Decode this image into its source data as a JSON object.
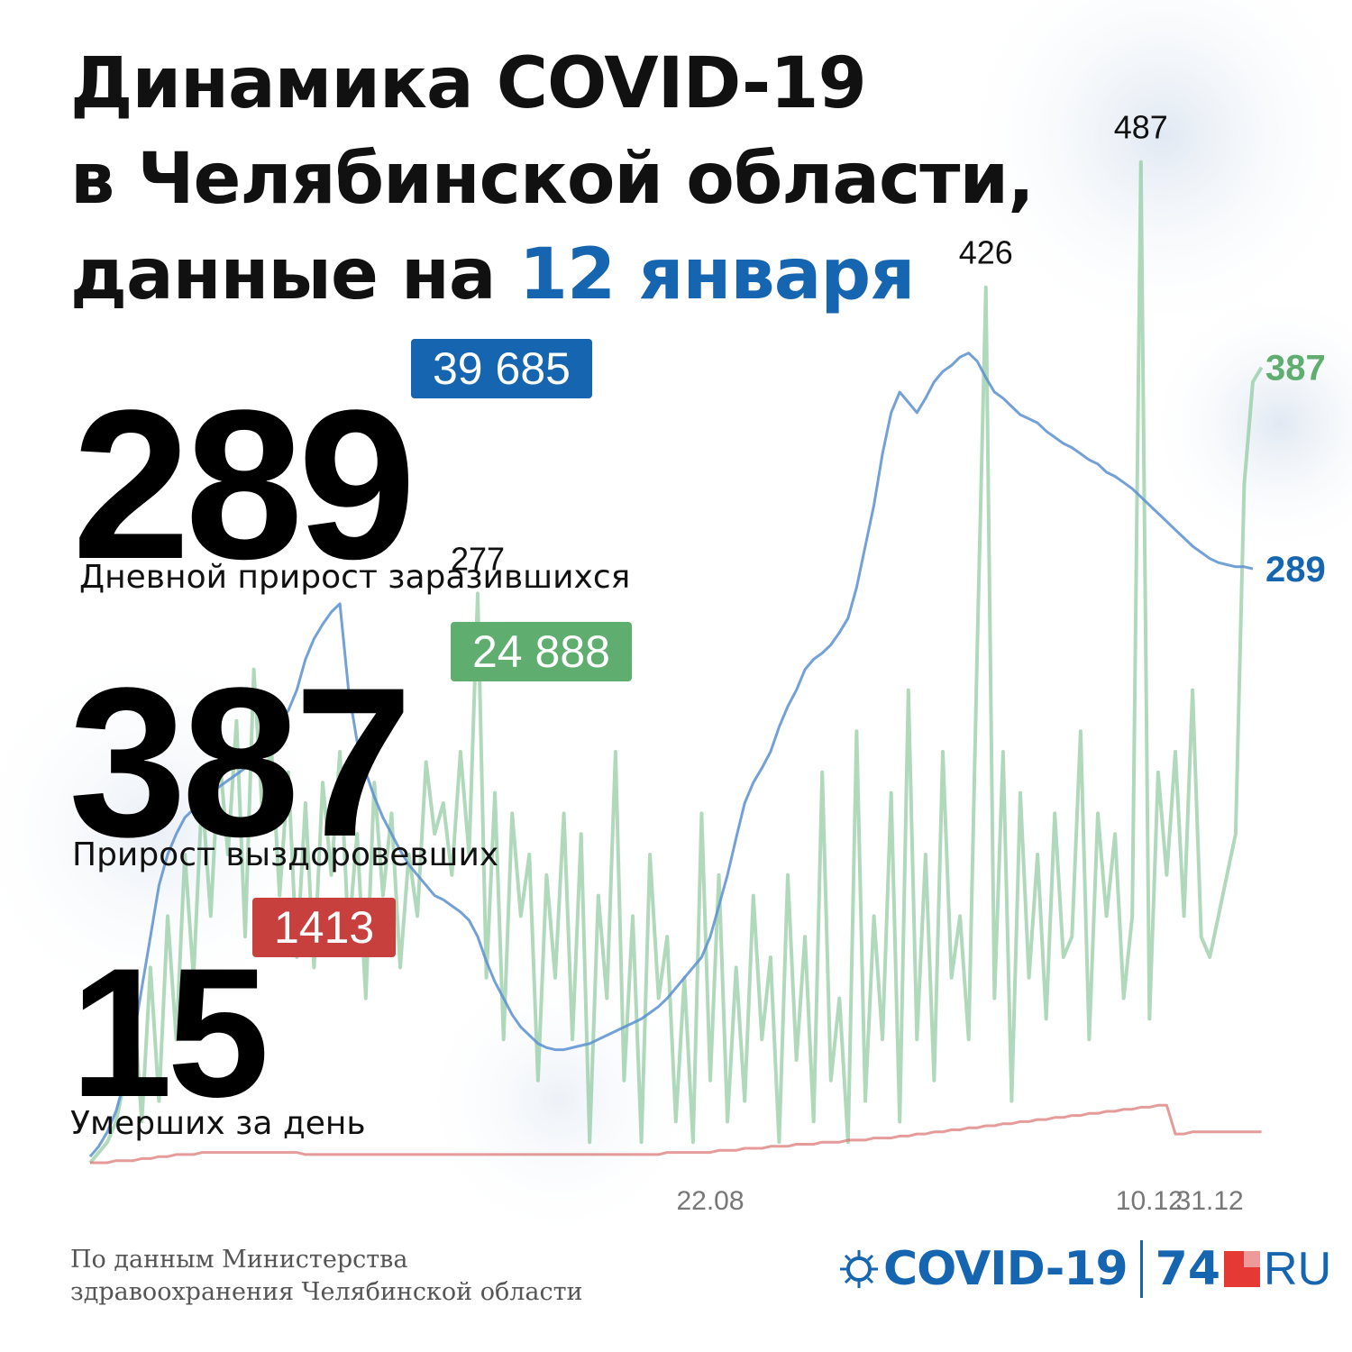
{
  "title": {
    "line1": "Динамика COVID-19",
    "line2": "в Челябинской области,",
    "line3_prefix": "данные на ",
    "line3_date": "12 января"
  },
  "stats": {
    "infected": {
      "value": "289",
      "label": "Дневной прирост заразившихся",
      "total": "39 685"
    },
    "recovered": {
      "value": "387",
      "label": "Прирост выздоровевших",
      "total": "24 888"
    },
    "deaths": {
      "value": "15",
      "label": "Умерших за день",
      "total": "1413"
    }
  },
  "footer": {
    "source_line1": "По данным Министерства",
    "source_line2": "здравоохранения Челябинской области"
  },
  "logo": {
    "covid": "COVID-19",
    "num": "74",
    "ru": "RU"
  },
  "colors": {
    "accent": "#1565b0",
    "infected": "#5b8fd0",
    "recovered": "#86c496",
    "deaths": "#d9706e",
    "badge_infected": "#1565b0",
    "badge_recovered": "#5fae6f",
    "badge_deaths": "#c8403e"
  },
  "chart_data": {
    "type": "line",
    "x_tick_labels": [
      "22.08",
      "10.12",
      "31.12"
    ],
    "ylim": [
      0,
      500
    ],
    "series": [
      {
        "key": "infected",
        "values": [
          3,
          8,
          15,
          25,
          40,
          60,
          85,
          110,
          135,
          150,
          160,
          168,
          172,
          176,
          180,
          183,
          186,
          189,
          192,
          195,
          200,
          210,
          215,
          220,
          230,
          245,
          255,
          262,
          268,
          272,
          230,
          205,
          190,
          178,
          168,
          160,
          152,
          145,
          140,
          135,
          130,
          128,
          125,
          122,
          118,
          110,
          98,
          88,
          80,
          72,
          66,
          62,
          58,
          56,
          55,
          55,
          56,
          57,
          58,
          60,
          62,
          64,
          66,
          68,
          70,
          73,
          76,
          80,
          85,
          90,
          95,
          100,
          110,
          125,
          140,
          158,
          175,
          185,
          192,
          200,
          212,
          222,
          230,
          240,
          245,
          248,
          252,
          258,
          265,
          280,
          300,
          320,
          345,
          365,
          375,
          370,
          365,
          372,
          380,
          385,
          388,
          392,
          394,
          390,
          382,
          375,
          372,
          368,
          364,
          362,
          360,
          356,
          353,
          350,
          348,
          345,
          342,
          340,
          336,
          334,
          331,
          328,
          324,
          320,
          316,
          312,
          308,
          304,
          300,
          297,
          294,
          292,
          291,
          290,
          290,
          289
        ],
        "end_label": "289"
      },
      {
        "key": "recovered",
        "values": [
          0,
          5,
          10,
          20,
          40,
          80,
          20,
          95,
          30,
          120,
          60,
          150,
          90,
          180,
          120,
          200,
          150,
          215,
          110,
          240,
          170,
          205,
          130,
          190,
          100,
          175,
          95,
          185,
          140,
          200,
          110,
          160,
          80,
          185,
          130,
          170,
          95,
          150,
          120,
          195,
          160,
          175,
          140,
          200,
          150,
          277,
          90,
          180,
          60,
          170,
          120,
          150,
          40,
          140,
          90,
          170,
          60,
          160,
          10,
          130,
          80,
          200,
          40,
          120,
          10,
          150,
          80,
          110,
          20,
          90,
          10,
          170,
          40,
          140,
          20,
          95,
          30,
          130,
          60,
          100,
          10,
          140,
          50,
          110,
          20,
          190,
          40,
          80,
          10,
          210,
          30,
          120,
          60,
          180,
          20,
          230,
          60,
          150,
          40,
          200,
          90,
          120,
          60,
          250,
          426,
          80,
          200,
          30,
          180,
          90,
          150,
          70,
          170,
          100,
          110,
          210,
          60,
          170,
          120,
          160,
          80,
          120,
          487,
          70,
          190,
          140,
          200,
          120,
          230,
          110,
          100,
          120,
          140,
          160,
          330,
          380,
          387
        ],
        "end_label": "387",
        "peak_labels": [
          {
            "value": "277"
          },
          {
            "value": "426"
          },
          {
            "value": "487"
          }
        ]
      },
      {
        "key": "deaths",
        "values": [
          0,
          0,
          0,
          1,
          1,
          1,
          2,
          2,
          3,
          3,
          4,
          4,
          4,
          5,
          5,
          5,
          5,
          5,
          5,
          5,
          5,
          5,
          5,
          5,
          5,
          4,
          4,
          4,
          4,
          4,
          4,
          4,
          4,
          4,
          4,
          4,
          4,
          4,
          4,
          4,
          4,
          4,
          4,
          4,
          4,
          4,
          4,
          4,
          4,
          4,
          4,
          4,
          4,
          4,
          4,
          4,
          4,
          4,
          4,
          4,
          4,
          4,
          4,
          4,
          4,
          4,
          4,
          5,
          5,
          5,
          5,
          5,
          5,
          6,
          6,
          6,
          7,
          7,
          7,
          8,
          8,
          8,
          9,
          9,
          9,
          10,
          10,
          10,
          11,
          11,
          11,
          12,
          12,
          12,
          13,
          13,
          14,
          14,
          15,
          15,
          16,
          16,
          17,
          17,
          18,
          18,
          19,
          19,
          20,
          20,
          21,
          21,
          22,
          22,
          23,
          23,
          24,
          24,
          25,
          25,
          26,
          26,
          27,
          27,
          28,
          28,
          14,
          14,
          15,
          15,
          15,
          15,
          15,
          15,
          15,
          15,
          15
        ],
        "end_label": ""
      }
    ]
  }
}
